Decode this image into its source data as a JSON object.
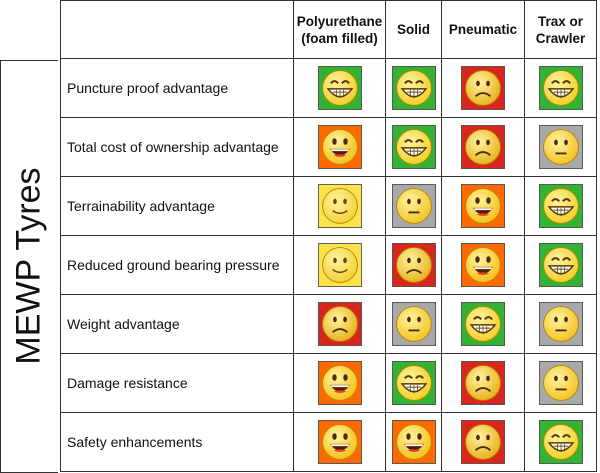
{
  "title": "MEWP Tyres",
  "columns": [
    {
      "line1": "Polyurethane",
      "line2": "(foam filled)"
    },
    {
      "line1": "Solid",
      "line2": ""
    },
    {
      "line1": "Pneumatic",
      "line2": ""
    },
    {
      "line1": "Trax or",
      "line2": "Crawler"
    }
  ],
  "rows": [
    {
      "label": "Puncture proof advantage",
      "ratings": [
        "grin",
        "grin",
        "sad",
        "grin"
      ]
    },
    {
      "label": "Total cost of ownership advantage",
      "ratings": [
        "happy",
        "grin",
        "sad",
        "neutral"
      ]
    },
    {
      "label": "Terrainability advantage",
      "ratings": [
        "smile",
        "neutral",
        "happy",
        "grin"
      ]
    },
    {
      "label": "Reduced ground bearing pressure",
      "ratings": [
        "smile",
        "sad",
        "happy",
        "grin"
      ]
    },
    {
      "label": "Weight advantage",
      "ratings": [
        "sad",
        "neutral",
        "grin",
        "neutral"
      ]
    },
    {
      "label": "Damage resistance",
      "ratings": [
        "happy",
        "grin",
        "sad",
        "neutral"
      ]
    },
    {
      "label": "Safety enhancements",
      "ratings": [
        "happy",
        "happy",
        "sad",
        "grin"
      ]
    }
  ],
  "rating_colors": {
    "grin": "#34b233",
    "happy": "#ff6a00",
    "smile": "#fde24a",
    "neutral": "#a9a9a9",
    "sad": "#d9261c"
  }
}
